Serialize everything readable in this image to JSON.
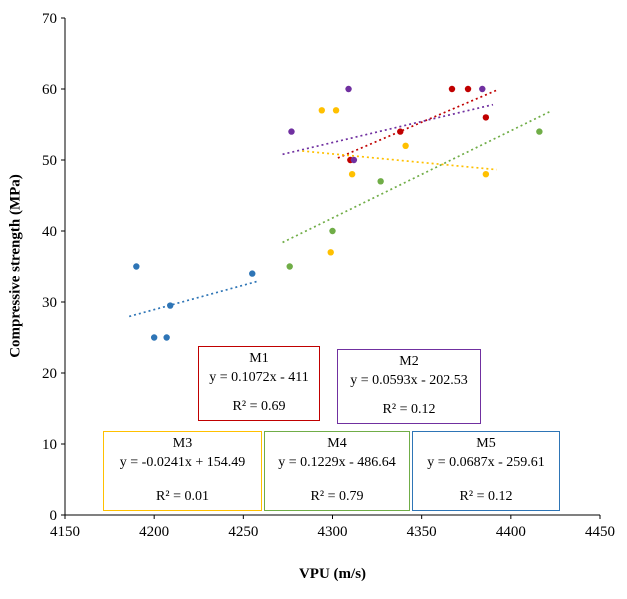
{
  "chart_data": {
    "type": "scatter",
    "title": "",
    "xlabel": "VPU (m/s)",
    "ylabel": "Compressive strength (MPa)",
    "xlim": [
      4150,
      4450
    ],
    "ylim": [
      0,
      70
    ],
    "xticks": [
      4150,
      4200,
      4250,
      4300,
      4350,
      4400,
      4450
    ],
    "yticks": [
      0,
      10,
      20,
      30,
      40,
      50,
      60,
      70
    ],
    "grid": false,
    "legend_position": "boxes-inside-plot",
    "series": [
      {
        "name": "M1",
        "color": "#C00000",
        "points": [
          [
            4310,
            50
          ],
          [
            4338,
            54
          ],
          [
            4367,
            60
          ],
          [
            4376,
            60
          ],
          [
            4386,
            56
          ]
        ],
        "trendline": {
          "slope": 0.1072,
          "intercept": -411,
          "x_start": 4303,
          "x_end": 4393
        },
        "equation": "y = 0.1072x - 411",
        "r2": "R² = 0.69"
      },
      {
        "name": "M2",
        "color": "#7030A0",
        "points": [
          [
            4277,
            54
          ],
          [
            4309,
            60
          ],
          [
            4312,
            50
          ],
          [
            4384,
            60
          ]
        ],
        "trendline": {
          "slope": 0.0593,
          "intercept": -202.53,
          "x_start": 4272,
          "x_end": 4390
        },
        "equation": "y = 0.0593x - 202.53",
        "r2": "R² = 0.12"
      },
      {
        "name": "M3",
        "color": "#FFC000",
        "points": [
          [
            4294,
            57
          ],
          [
            4302,
            57
          ],
          [
            4299,
            37
          ],
          [
            4311,
            48
          ],
          [
            4341,
            52
          ],
          [
            4386,
            48
          ]
        ],
        "trendline": {
          "slope": -0.0241,
          "intercept": 154.49,
          "x_start": 4283,
          "x_end": 4392
        },
        "equation": "y = -0.0241x + 154.49",
        "r2": "R² = 0.01"
      },
      {
        "name": "M4",
        "color": "#70AD47",
        "points": [
          [
            4276,
            35
          ],
          [
            4300,
            40
          ],
          [
            4327,
            47
          ],
          [
            4416,
            54
          ]
        ],
        "trendline": {
          "slope": 0.1229,
          "intercept": -486.64,
          "x_start": 4272,
          "x_end": 4422
        },
        "equation": "y = 0.1229x - 486.64",
        "r2": "R² = 0.79"
      },
      {
        "name": "M5",
        "color": "#2E75B6",
        "points": [
          [
            4190,
            35
          ],
          [
            4200,
            25
          ],
          [
            4207,
            25
          ],
          [
            4209,
            29.5
          ],
          [
            4255,
            34
          ]
        ],
        "trendline": {
          "slope": 0.0687,
          "intercept": -259.61,
          "x_start": 4186,
          "x_end": 4258
        },
        "equation": "y = 0.0687x - 259.61",
        "r2": "R² = 0.12"
      }
    ]
  }
}
